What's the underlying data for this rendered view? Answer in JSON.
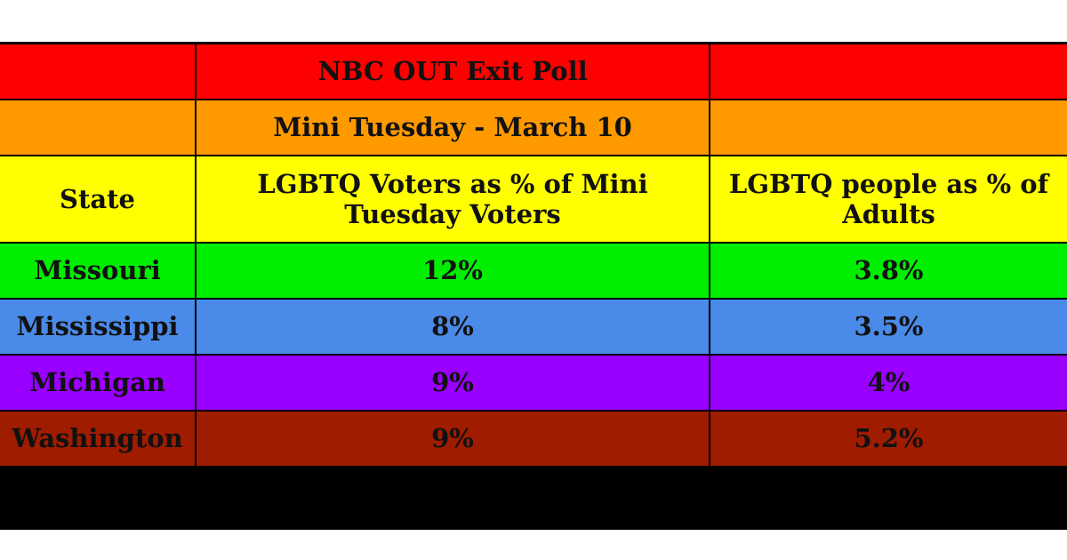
{
  "chart_data": {
    "type": "table",
    "title": "NBC OUT Exit Poll",
    "subtitle": "Mini Tuesday - March 10",
    "columns": [
      "State",
      "LGBTQ Voters as % of Mini Tuesday Voters",
      "LGBTQ people as % of Adults"
    ],
    "rows": [
      {
        "state": "Missouri",
        "voters_pct": "12%",
        "adults_pct": "3.8%",
        "color": "#00ee00"
      },
      {
        "state": "Mississippi",
        "voters_pct": "8%",
        "adults_pct": "3.5%",
        "color": "#4a8ae8"
      },
      {
        "state": "Michigan",
        "voters_pct": "9%",
        "adults_pct": "4%",
        "color": "#9900ff"
      },
      {
        "state": "Washington",
        "voters_pct": "9%",
        "adults_pct": "5.2%",
        "color": "#a01c00"
      }
    ],
    "band_colors": {
      "title": "#ff0000",
      "subtitle": "#ff9900",
      "header": "#ffff00",
      "footer": "#000000"
    }
  }
}
